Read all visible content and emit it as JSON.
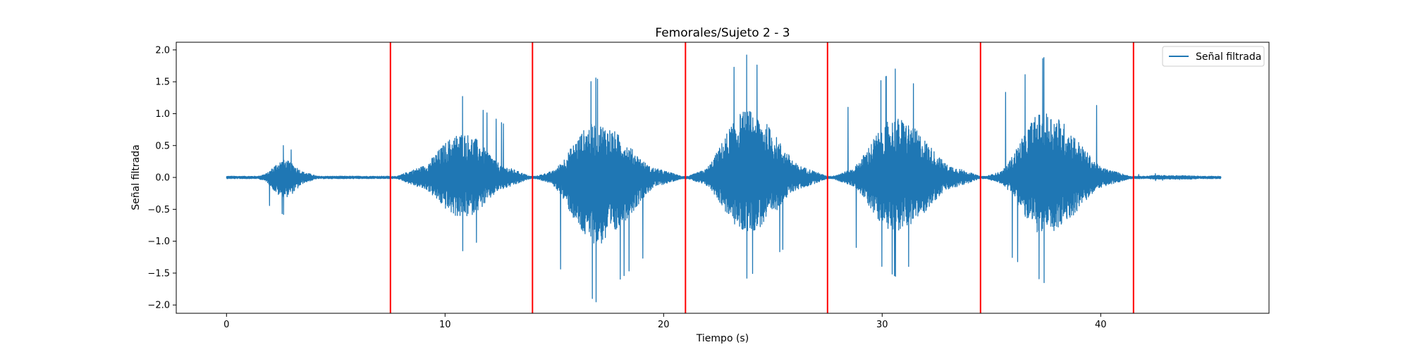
{
  "chart_data": {
    "type": "line",
    "title": "Femorales/Sujeto 2 - 3",
    "xlabel": "Tiempo (s)",
    "ylabel": "Señal filtrada",
    "xlim": [
      -2.3,
      47.7
    ],
    "ylim": [
      -2.13,
      2.12
    ],
    "xticks": [
      0,
      10,
      20,
      30,
      40
    ],
    "xtick_labels": [
      "0",
      "10",
      "20",
      "30",
      "40"
    ],
    "yticks": [
      2.0,
      1.5,
      1.0,
      0.5,
      0.0,
      -0.5,
      -1.0,
      -1.5,
      -2.0
    ],
    "ytick_labels": [
      "2.0",
      "1.5",
      "1.0",
      "0.5",
      "0.0",
      "−0.5",
      "−1.0",
      "−1.5",
      "−2.0"
    ],
    "grid": false,
    "legend_position": "top-right",
    "series": [
      {
        "name": "Señal filtrada",
        "color": "#1f77b4",
        "x_range": [
          0,
          45.5
        ],
        "noise_floor": 0.02,
        "bursts": [
          {
            "start": 1.3,
            "end": 4.3,
            "peak_time": 2.6,
            "max": 0.5,
            "min": -0.58,
            "sustain": 0.12
          },
          {
            "start": 7.7,
            "end": 14.0,
            "peak_time": 10.8,
            "max": 1.27,
            "min": -1.15,
            "sustain": 0.3
          },
          {
            "start": 14.0,
            "end": 21.0,
            "peak_time": 16.9,
            "max": 1.56,
            "min": -1.95,
            "sustain": 0.25
          },
          {
            "start": 21.0,
            "end": 27.6,
            "peak_time": 23.8,
            "max": 1.92,
            "min": -1.58,
            "sustain": 0.3
          },
          {
            "start": 27.6,
            "end": 34.6,
            "peak_time": 30.6,
            "max": 1.7,
            "min": -1.55,
            "sustain": 0.3
          },
          {
            "start": 34.6,
            "end": 41.5,
            "peak_time": 37.4,
            "max": 1.88,
            "min": -1.65,
            "sustain": 0.25
          },
          {
            "start": 41.5,
            "end": 45.5,
            "peak_time": 42.5,
            "max": 0.06,
            "min": -0.05,
            "sustain": 0.03
          }
        ]
      }
    ],
    "vertical_lines": {
      "color": "#ff0000",
      "x": [
        7.5,
        14.0,
        21.0,
        27.5,
        34.5,
        41.5
      ]
    }
  }
}
